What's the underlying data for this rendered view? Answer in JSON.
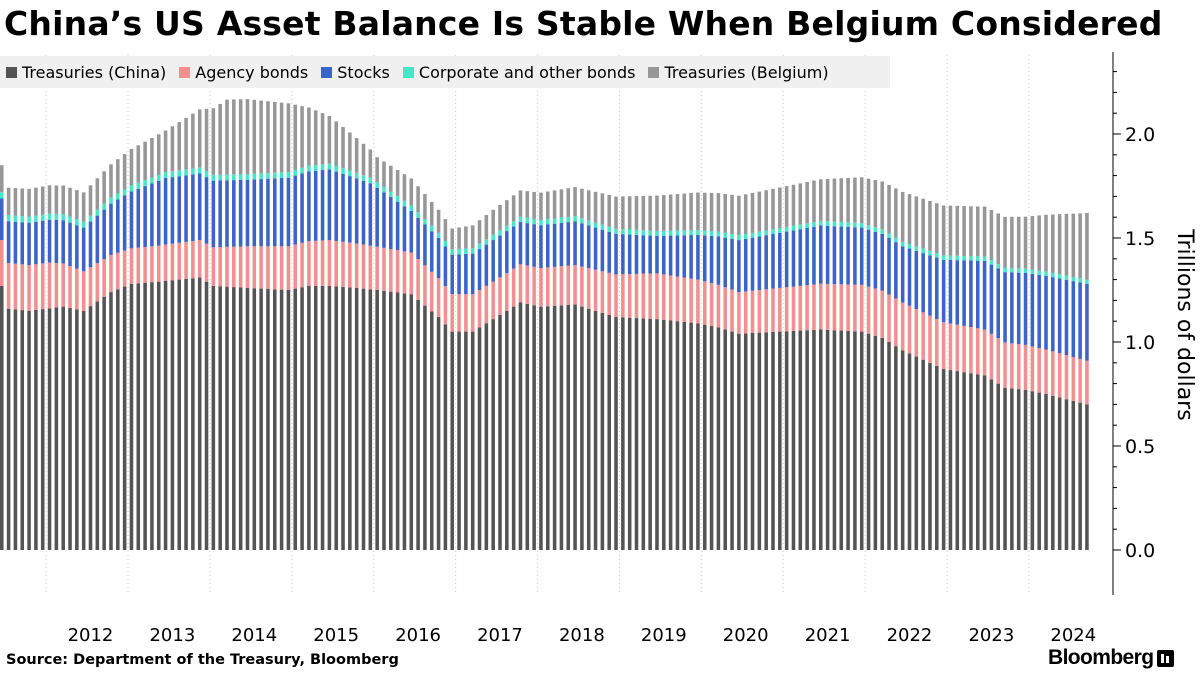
{
  "chart_data": {
    "type": "bar",
    "stacked": true,
    "title": "China’s US Asset Balance Is Stable When Belgium Considered",
    "ylabel": "Trillions of dollars",
    "ylim": [
      -0.2,
      2.4
    ],
    "y_ticks": [
      "0.0",
      "0.5",
      "1.0",
      "1.5",
      "2.0"
    ],
    "x_tick_labels": [
      "2012",
      "2013",
      "2014",
      "2015",
      "2016",
      "2017",
      "2018",
      "2019",
      "2020",
      "2021",
      "2022",
      "2023",
      "2024"
    ],
    "x_start": "2011-06",
    "x_end": "2024-09",
    "grid": "vertical",
    "legend_position": "top-left",
    "series": [
      {
        "name": "Treasuries (China)",
        "color": "#545454",
        "key_points": [
          [
            "2011-06",
            1.27
          ],
          [
            "2011-07",
            1.16
          ],
          [
            "2011-10",
            1.15
          ],
          [
            "2012-03",
            1.17
          ],
          [
            "2012-06",
            1.15
          ],
          [
            "2012-10",
            1.24
          ],
          [
            "2013-01",
            1.28
          ],
          [
            "2013-05",
            1.29
          ],
          [
            "2013-11",
            1.31
          ],
          [
            "2014-01",
            1.27
          ],
          [
            "2014-06",
            1.26
          ],
          [
            "2014-12",
            1.25
          ],
          [
            "2015-03",
            1.27
          ],
          [
            "2015-06",
            1.27
          ],
          [
            "2015-10",
            1.26
          ],
          [
            "2016-01",
            1.25
          ],
          [
            "2016-06",
            1.23
          ],
          [
            "2016-10",
            1.12
          ],
          [
            "2016-12",
            1.05
          ],
          [
            "2017-03",
            1.05
          ],
          [
            "2017-06",
            1.11
          ],
          [
            "2017-10",
            1.19
          ],
          [
            "2018-01",
            1.17
          ],
          [
            "2018-06",
            1.18
          ],
          [
            "2018-12",
            1.12
          ],
          [
            "2019-06",
            1.11
          ],
          [
            "2019-12",
            1.09
          ],
          [
            "2020-03",
            1.07
          ],
          [
            "2020-06",
            1.04
          ],
          [
            "2020-12",
            1.05
          ],
          [
            "2021-06",
            1.06
          ],
          [
            "2021-12",
            1.05
          ],
          [
            "2022-03",
            1.02
          ],
          [
            "2022-06",
            0.96
          ],
          [
            "2022-12",
            0.87
          ],
          [
            "2023-06",
            0.84
          ],
          [
            "2023-09",
            0.78
          ],
          [
            "2023-12",
            0.77
          ],
          [
            "2024-03",
            0.75
          ],
          [
            "2024-09",
            0.7
          ]
        ]
      },
      {
        "name": "Agency bonds",
        "color": "#f28f8f",
        "key_points": [
          [
            "2011-06",
            0.22
          ],
          [
            "2012-01",
            0.22
          ],
          [
            "2012-06",
            0.19
          ],
          [
            "2013-01",
            0.17
          ],
          [
            "2013-11",
            0.18
          ],
          [
            "2014-06",
            0.2
          ],
          [
            "2015-06",
            0.22
          ],
          [
            "2016-06",
            0.2
          ],
          [
            "2016-12",
            0.18
          ],
          [
            "2017-06",
            0.18
          ],
          [
            "2018-06",
            0.19
          ],
          [
            "2019-06",
            0.22
          ],
          [
            "2020-06",
            0.2
          ],
          [
            "2021-06",
            0.22
          ],
          [
            "2022-06",
            0.23
          ],
          [
            "2023-06",
            0.22
          ],
          [
            "2024-09",
            0.21
          ]
        ]
      },
      {
        "name": "Stocks",
        "color": "#3b63c8",
        "key_points": [
          [
            "2011-06",
            0.2
          ],
          [
            "2012-06",
            0.21
          ],
          [
            "2013-06",
            0.32
          ],
          [
            "2014-06",
            0.32
          ],
          [
            "2015-06",
            0.34
          ],
          [
            "2015-12",
            0.3
          ],
          [
            "2016-06",
            0.2
          ],
          [
            "2016-12",
            0.19
          ],
          [
            "2017-06",
            0.2
          ],
          [
            "2018-06",
            0.21
          ],
          [
            "2019-06",
            0.18
          ],
          [
            "2020-06",
            0.25
          ],
          [
            "2021-06",
            0.28
          ],
          [
            "2022-06",
            0.27
          ],
          [
            "2023-06",
            0.33
          ],
          [
            "2024-09",
            0.37
          ]
        ]
      },
      {
        "name": "Corporate and other bonds",
        "color": "#44e7c8",
        "key_points": [
          [
            "2011-06",
            0.03
          ],
          [
            "2024-09",
            0.02
          ]
        ]
      },
      {
        "name": "Treasuries (Belgium)",
        "color": "#979797",
        "key_points": [
          [
            "2011-06",
            0.13
          ],
          [
            "2012-06",
            0.14
          ],
          [
            "2013-06",
            0.2
          ],
          [
            "2013-11",
            0.28
          ],
          [
            "2014-03",
            0.36
          ],
          [
            "2014-06",
            0.36
          ],
          [
            "2014-12",
            0.33
          ],
          [
            "2015-06",
            0.23
          ],
          [
            "2016-01",
            0.12
          ],
          [
            "2016-06",
            0.13
          ],
          [
            "2016-12",
            0.1
          ],
          [
            "2017-06",
            0.12
          ],
          [
            "2018-06",
            0.14
          ],
          [
            "2019-06",
            0.17
          ],
          [
            "2020-06",
            0.19
          ],
          [
            "2021-06",
            0.2
          ],
          [
            "2022-06",
            0.24
          ],
          [
            "2023-06",
            0.24
          ],
          [
            "2023-12",
            0.25
          ],
          [
            "2024-09",
            0.32
          ]
        ]
      }
    ]
  },
  "source": "Source: Department of the Treasury, Bloomberg",
  "brand": "Bloomberg"
}
